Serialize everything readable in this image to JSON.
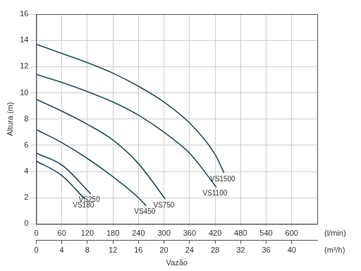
{
  "chart_data": {
    "type": "line",
    "x_label": "Vazão",
    "y_label": "Altura (m)",
    "x_unit": "(l/min)",
    "x2_unit": "(m³/h)",
    "xlim": [
      0,
      660
    ],
    "xticks": [
      0,
      60,
      120,
      180,
      240,
      300,
      360,
      420,
      480,
      540,
      600
    ],
    "x2lim": [
      0,
      44
    ],
    "x2ticks": [
      0,
      4,
      8,
      12,
      16,
      20,
      24,
      28,
      32,
      36,
      40
    ],
    "ylim": [
      0,
      16
    ],
    "yticks": [
      0,
      2,
      4,
      6,
      8,
      10,
      12,
      14,
      16
    ],
    "grid": true,
    "series": [
      {
        "name": "VS1500",
        "color": "#1d4d5c",
        "x": [
          0,
          60,
          120,
          180,
          240,
          300,
          360,
          420,
          441
        ],
        "values": [
          13.7,
          13.0,
          12.3,
          11.5,
          10.5,
          9.3,
          7.7,
          5.3,
          3.9
        ]
      },
      {
        "name": "VS1100",
        "color": "#1d4d5c",
        "x": [
          0,
          60,
          120,
          180,
          240,
          300,
          360,
          423
        ],
        "values": [
          11.4,
          10.8,
          10.1,
          9.3,
          8.3,
          7.0,
          5.4,
          2.8
        ]
      },
      {
        "name": "VS750",
        "color": "#1d4d5c",
        "x": [
          0,
          60,
          120,
          180,
          240,
          303
        ],
        "values": [
          9.5,
          8.6,
          7.6,
          6.4,
          4.6,
          1.9
        ]
      },
      {
        "name": "VS450",
        "color": "#1d4d5c",
        "x": [
          0,
          60,
          120,
          180,
          240,
          258
        ],
        "values": [
          7.2,
          6.2,
          5.0,
          3.6,
          2.0,
          1.4
        ]
      },
      {
        "name": "VS250",
        "color": "#1d4d5c",
        "x": [
          0,
          60,
          128
        ],
        "values": [
          5.4,
          4.5,
          2.3
        ]
      },
      {
        "name": "VS180",
        "color": "#1d4d5c",
        "x": [
          0,
          60,
          114
        ],
        "values": [
          4.8,
          3.7,
          1.9
        ]
      }
    ]
  }
}
